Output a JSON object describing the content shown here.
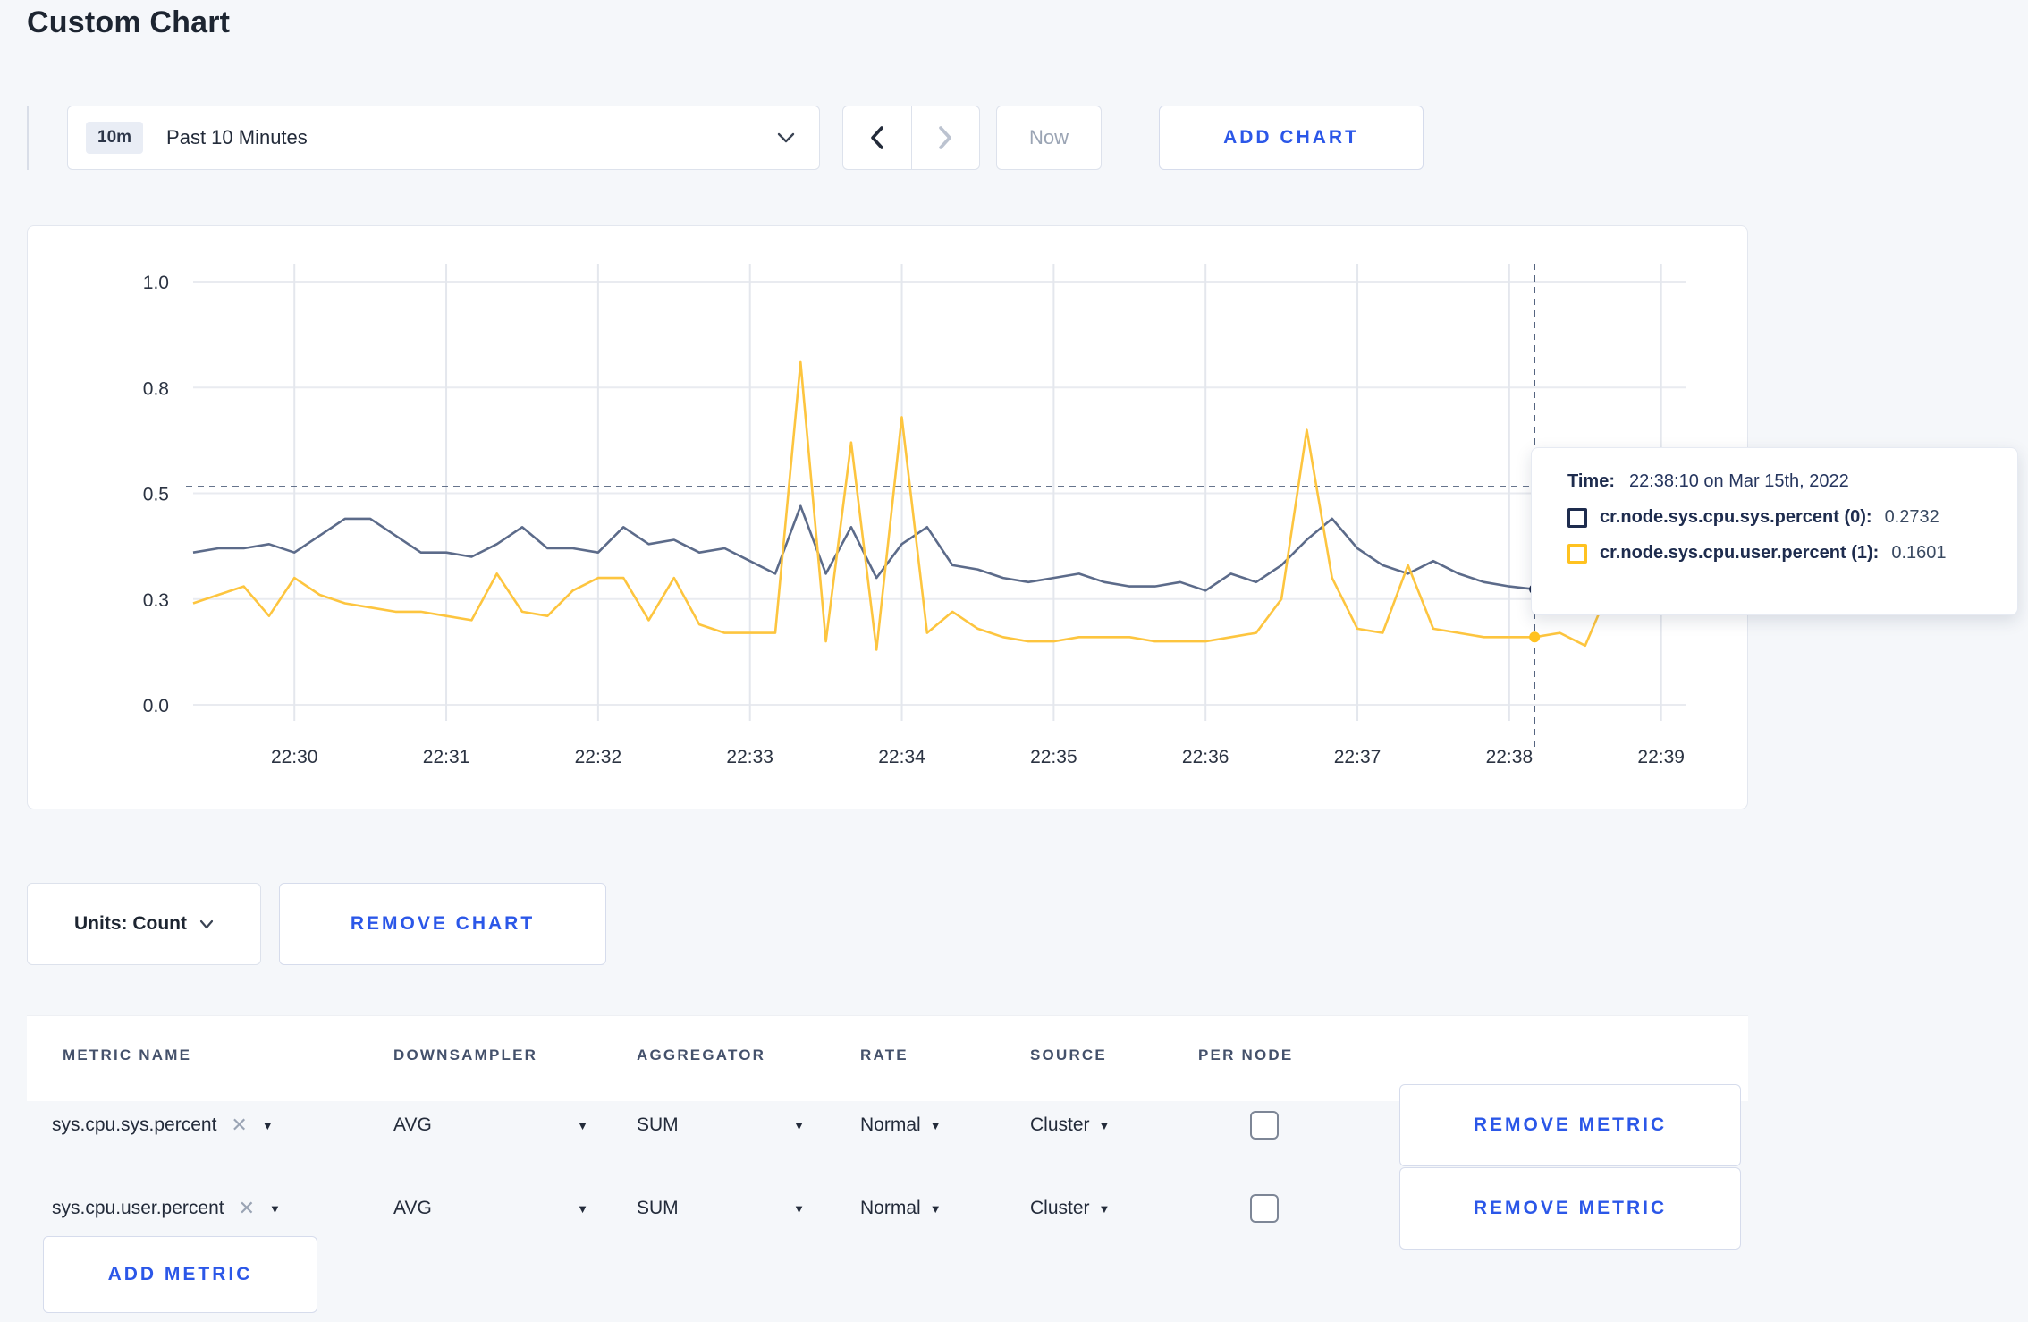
{
  "page": {
    "title": "Custom Chart"
  },
  "colors": {
    "page_bg": "#f5f7fa",
    "accent_blue": "#2b57e8",
    "series_sys_line": "#5c6b8a",
    "series_sys_swatch": "#1e2c4e",
    "series_user_line": "#fdc53f",
    "series_user_swatch": "#ffc220",
    "grid_line": "#e9ebf0",
    "crosshair": "#50607c"
  },
  "toolbar": {
    "time_range_badge": "10m",
    "time_range_label": "Past 10 Minutes",
    "now_label": "Now",
    "add_chart_label": "ADD CHART"
  },
  "chart_data": {
    "type": "line",
    "title": "",
    "xlabel": "",
    "ylabel": "",
    "ylim": [
      0,
      1
    ],
    "grid": true,
    "legend_position": "tooltip",
    "x_start": "22:29:20",
    "x_step_seconds": 10,
    "x_ticks": [
      "22:30",
      "22:31",
      "22:32",
      "22:33",
      "22:34",
      "22:35",
      "22:36",
      "22:37",
      "22:38",
      "22:39"
    ],
    "y_ticks": [
      {
        "label": "0.0",
        "value": 0
      },
      {
        "label": "0.3",
        "value": 0.25
      },
      {
        "label": "0.5",
        "value": 0.5
      },
      {
        "label": "0.8",
        "value": 0.75
      },
      {
        "label": "1.0",
        "value": 1.0
      }
    ],
    "series": [
      {
        "name": "cr.node.sys.cpu.sys.percent (0)",
        "color": "#5c6b8a",
        "swatch": "#1e2c4e",
        "values": [
          0.36,
          0.37,
          0.37,
          0.38,
          0.36,
          0.4,
          0.44,
          0.44,
          0.4,
          0.36,
          0.36,
          0.35,
          0.38,
          0.42,
          0.37,
          0.37,
          0.36,
          0.42,
          0.38,
          0.39,
          0.36,
          0.37,
          0.34,
          0.31,
          0.47,
          0.31,
          0.42,
          0.3,
          0.38,
          0.42,
          0.33,
          0.32,
          0.3,
          0.29,
          0.3,
          0.31,
          0.29,
          0.28,
          0.28,
          0.29,
          0.27,
          0.31,
          0.29,
          0.33,
          0.39,
          0.44,
          0.37,
          0.33,
          0.31,
          0.34,
          0.31,
          0.29,
          0.28,
          0.2732,
          0.26,
          0.27,
          0.31,
          0.29,
          0.3,
          0.31
        ]
      },
      {
        "name": "cr.node.sys.cpu.user.percent (1)",
        "color": "#fdc53f",
        "swatch": "#ffc220",
        "values": [
          0.24,
          0.26,
          0.28,
          0.21,
          0.3,
          0.26,
          0.24,
          0.23,
          0.22,
          0.22,
          0.21,
          0.2,
          0.31,
          0.22,
          0.21,
          0.27,
          0.3,
          0.3,
          0.2,
          0.3,
          0.19,
          0.17,
          0.17,
          0.17,
          0.81,
          0.15,
          0.62,
          0.13,
          0.68,
          0.17,
          0.22,
          0.18,
          0.16,
          0.15,
          0.15,
          0.16,
          0.16,
          0.16,
          0.15,
          0.15,
          0.15,
          0.16,
          0.17,
          0.25,
          0.65,
          0.3,
          0.18,
          0.17,
          0.33,
          0.18,
          0.17,
          0.16,
          0.16,
          0.1601,
          0.17,
          0.14,
          0.28,
          0.38,
          0.37,
          0.26
        ]
      }
    ],
    "crosshair": {
      "point_index": 53,
      "hover_value": 0.516
    }
  },
  "tooltip": {
    "time_label": "Time:",
    "time_value": "22:38:10 on Mar 15th, 2022",
    "entries": [
      {
        "label": "cr.node.sys.cpu.sys.percent (0):",
        "value": "0.2732",
        "swatch": "#1e2c4e"
      },
      {
        "label": "cr.node.sys.cpu.user.percent (1):",
        "value": "0.1601",
        "swatch": "#ffc220"
      }
    ]
  },
  "units_row": {
    "units_label": "Units: Count",
    "remove_chart_label": "REMOVE CHART"
  },
  "metrics_table": {
    "columns": [
      "METRIC NAME",
      "DOWNSAMPLER",
      "AGGREGATOR",
      "RATE",
      "SOURCE",
      "PER NODE"
    ],
    "rows": [
      {
        "metric": "sys.cpu.sys.percent",
        "downsampler": "AVG",
        "aggregator": "SUM",
        "rate": "Normal",
        "source": "Cluster",
        "per_node_checked": false,
        "remove_label": "REMOVE METRIC"
      },
      {
        "metric": "sys.cpu.user.percent",
        "downsampler": "AVG",
        "aggregator": "SUM",
        "rate": "Normal",
        "source": "Cluster",
        "per_node_checked": false,
        "remove_label": "REMOVE METRIC"
      }
    ],
    "add_metric_label": "ADD METRIC"
  }
}
